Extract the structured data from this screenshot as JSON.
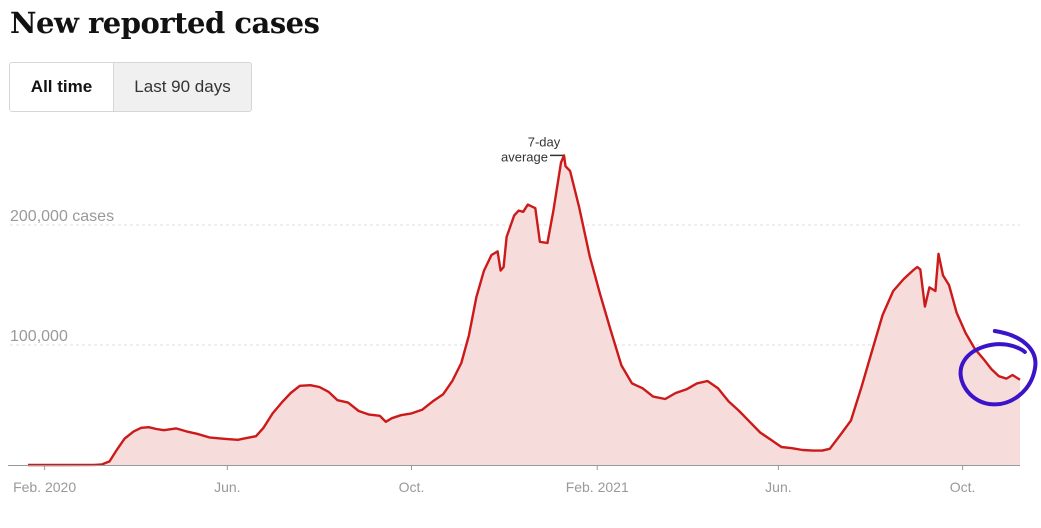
{
  "title": "New reported cases",
  "toggle": {
    "options": [
      "All time",
      "Last 90 days"
    ],
    "selected": "All time"
  },
  "colors": {
    "line": "#cc1a1a",
    "area": "#f7dcdc",
    "gridline": "#dddddd",
    "axis_label": "#999999",
    "circle_annotation": "#3b14c9"
  },
  "chart_data": {
    "type": "area",
    "title": "",
    "series": [
      {
        "name": "7-day average",
        "points": [
          [
            "2020-01-21",
            0
          ],
          [
            "2020-02-15",
            0
          ],
          [
            "2020-03-05",
            100
          ],
          [
            "2020-03-10",
            500
          ],
          [
            "2020-03-15",
            3000
          ],
          [
            "2020-03-20",
            13000
          ],
          [
            "2020-03-25",
            22000
          ],
          [
            "2020-03-31",
            28000
          ],
          [
            "2020-04-05",
            31000
          ],
          [
            "2020-04-10",
            31500
          ],
          [
            "2020-04-15",
            30000
          ],
          [
            "2020-04-20",
            29000
          ],
          [
            "2020-04-28",
            30500
          ],
          [
            "2020-05-05",
            28000
          ],
          [
            "2020-05-12",
            26000
          ],
          [
            "2020-05-20",
            23000
          ],
          [
            "2020-05-28",
            22000
          ],
          [
            "2020-06-02",
            21500
          ],
          [
            "2020-06-08",
            21000
          ],
          [
            "2020-06-12",
            22000
          ],
          [
            "2020-06-20",
            24000
          ],
          [
            "2020-06-25",
            31000
          ],
          [
            "2020-07-01",
            43000
          ],
          [
            "2020-07-07",
            52000
          ],
          [
            "2020-07-13",
            60000
          ],
          [
            "2020-07-19",
            66000
          ],
          [
            "2020-07-26",
            66500
          ],
          [
            "2020-08-01",
            65000
          ],
          [
            "2020-08-07",
            61000
          ],
          [
            "2020-08-13",
            54000
          ],
          [
            "2020-08-20",
            52000
          ],
          [
            "2020-08-27",
            45000
          ],
          [
            "2020-09-03",
            42000
          ],
          [
            "2020-09-10",
            41000
          ],
          [
            "2020-09-14",
            36000
          ],
          [
            "2020-09-18",
            39000
          ],
          [
            "2020-09-24",
            41500
          ],
          [
            "2020-10-01",
            43000
          ],
          [
            "2020-10-08",
            46000
          ],
          [
            "2020-10-15",
            53000
          ],
          [
            "2020-10-22",
            59000
          ],
          [
            "2020-10-28",
            70000
          ],
          [
            "2020-11-03",
            85000
          ],
          [
            "2020-11-08",
            108000
          ],
          [
            "2020-11-13",
            140000
          ],
          [
            "2020-11-18",
            162000
          ],
          [
            "2020-11-23",
            175000
          ],
          [
            "2020-11-27",
            178000
          ],
          [
            "2020-11-29",
            162000
          ],
          [
            "2020-12-01",
            165000
          ],
          [
            "2020-12-03",
            190000
          ],
          [
            "2020-12-08",
            208000
          ],
          [
            "2020-12-11",
            212000
          ],
          [
            "2020-12-14",
            211000
          ],
          [
            "2020-12-17",
            217000
          ],
          [
            "2020-12-22",
            214000
          ],
          [
            "2020-12-25",
            186000
          ],
          [
            "2020-12-30",
            185000
          ],
          [
            "2021-01-03",
            212000
          ],
          [
            "2021-01-08",
            252000
          ],
          [
            "2021-01-10",
            258000
          ],
          [
            "2021-01-11",
            249000
          ],
          [
            "2021-01-14",
            245000
          ],
          [
            "2021-01-20",
            215000
          ],
          [
            "2021-01-27",
            174000
          ],
          [
            "2021-02-03",
            142000
          ],
          [
            "2021-02-10",
            112000
          ],
          [
            "2021-02-17",
            83000
          ],
          [
            "2021-02-24",
            68000
          ],
          [
            "2021-03-03",
            64000
          ],
          [
            "2021-03-10",
            57000
          ],
          [
            "2021-03-18",
            55000
          ],
          [
            "2021-03-25",
            60000
          ],
          [
            "2021-04-01",
            63000
          ],
          [
            "2021-04-08",
            68000
          ],
          [
            "2021-04-15",
            70000
          ],
          [
            "2021-04-22",
            64000
          ],
          [
            "2021-04-29",
            53000
          ],
          [
            "2021-05-06",
            45000
          ],
          [
            "2021-05-13",
            36000
          ],
          [
            "2021-05-20",
            27000
          ],
          [
            "2021-05-27",
            21000
          ],
          [
            "2021-06-03",
            15000
          ],
          [
            "2021-06-10",
            14000
          ],
          [
            "2021-06-17",
            12500
          ],
          [
            "2021-06-24",
            12000
          ],
          [
            "2021-06-30",
            12000
          ],
          [
            "2021-07-05",
            13500
          ],
          [
            "2021-07-12",
            25000
          ],
          [
            "2021-07-19",
            37000
          ],
          [
            "2021-07-26",
            65000
          ],
          [
            "2021-08-02",
            95000
          ],
          [
            "2021-08-09",
            125000
          ],
          [
            "2021-08-16",
            145000
          ],
          [
            "2021-08-23",
            155000
          ],
          [
            "2021-08-29",
            162000
          ],
          [
            "2021-09-01",
            165000
          ],
          [
            "2021-09-03",
            163000
          ],
          [
            "2021-09-06",
            132000
          ],
          [
            "2021-09-09",
            148000
          ],
          [
            "2021-09-13",
            145000
          ],
          [
            "2021-09-15",
            176000
          ],
          [
            "2021-09-18",
            158000
          ],
          [
            "2021-09-22",
            150000
          ],
          [
            "2021-09-27",
            127000
          ],
          [
            "2021-10-03",
            110000
          ],
          [
            "2021-10-09",
            97000
          ],
          [
            "2021-10-15",
            88000
          ],
          [
            "2021-10-20",
            80000
          ],
          [
            "2021-10-25",
            74000
          ],
          [
            "2021-10-30",
            72000
          ],
          [
            "2021-11-03",
            75000
          ],
          [
            "2021-11-08",
            71000
          ]
        ]
      }
    ],
    "xaxis": {
      "ticks": [
        [
          "2020-02-01",
          "Feb. 2020"
        ],
        [
          "2020-06-01",
          "Jun."
        ],
        [
          "2020-10-01",
          "Oct."
        ],
        [
          "2021-02-01",
          "Feb. 2021"
        ],
        [
          "2021-06-01",
          "Jun."
        ],
        [
          "2021-10-01",
          "Oct."
        ]
      ]
    },
    "yaxis": {
      "ylim": [
        0,
        270000
      ],
      "gridlines": [
        100000,
        200000
      ],
      "tick_labels": [
        "100,000",
        "200,000 cases"
      ]
    },
    "grid": "horizontal dashed",
    "annotation": {
      "text": [
        "7-day",
        "average"
      ],
      "date": "2021-01-10",
      "value": 258000
    },
    "markup": {
      "type": "hand-drawn circle",
      "target_date": "2021-10-25",
      "target_value": 80000
    }
  }
}
